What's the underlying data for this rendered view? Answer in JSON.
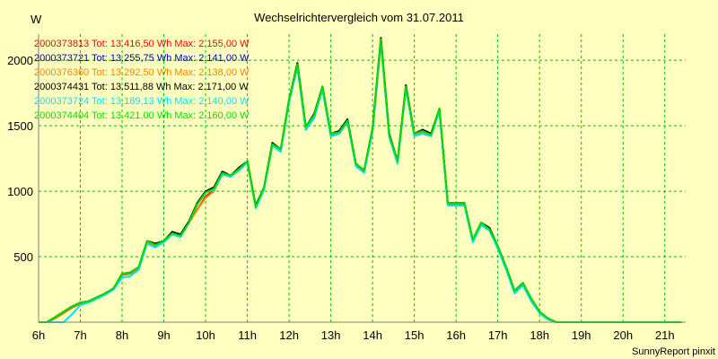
{
  "chart_data": {
    "type": "line",
    "title": "Wechselrichtervergleich vom 31.07.2011",
    "ylabel": "W",
    "xlabel": "",
    "footer": "SunnyReport pinxit",
    "colors": {
      "background": "#ffffc0",
      "grid": "#00c000",
      "axis": "#808080"
    },
    "xlim": [
      6,
      21.5
    ],
    "ylim": [
      0,
      2200
    ],
    "xticks": [
      6,
      7,
      8,
      9,
      10,
      11,
      12,
      13,
      14,
      15,
      16,
      17,
      18,
      19,
      20,
      21
    ],
    "xtick_labels": [
      "6h",
      "7h",
      "8h",
      "9h",
      "10h",
      "11h",
      "12h",
      "13h",
      "14h",
      "15h",
      "16h",
      "17h",
      "18h",
      "19h",
      "20h",
      "21h"
    ],
    "yticks": [
      500,
      1000,
      1500,
      2000
    ],
    "ytick_labels": [
      "500",
      "1000",
      "1500",
      "2000"
    ],
    "x": [
      6.0,
      6.2,
      6.4,
      6.6,
      6.8,
      7.0,
      7.2,
      7.4,
      7.6,
      7.8,
      8.0,
      8.2,
      8.4,
      8.6,
      8.8,
      9.0,
      9.2,
      9.4,
      9.6,
      9.8,
      10.0,
      10.2,
      10.4,
      10.6,
      10.8,
      11.0,
      11.2,
      11.4,
      11.6,
      11.8,
      12.0,
      12.2,
      12.4,
      12.6,
      12.8,
      13.0,
      13.2,
      13.4,
      13.6,
      13.8,
      14.0,
      14.2,
      14.4,
      14.6,
      14.8,
      15.0,
      15.2,
      15.4,
      15.6,
      15.8,
      16.0,
      16.2,
      16.4,
      16.6,
      16.8,
      17.0,
      17.2,
      17.4,
      17.6,
      17.8,
      18.0,
      18.2,
      18.4,
      18.6,
      18.8,
      19.0,
      19.2,
      19.4,
      19.6,
      19.8,
      20.0,
      20.2,
      20.4,
      20.6,
      20.8,
      21.0,
      21.2,
      21.4
    ],
    "series": [
      {
        "id": "2000373813",
        "legend": "2000373813 Tot: 13.416,50 Wh Max: 2.155,00 W",
        "color": "#ff0000",
        "values": [
          0,
          0,
          40,
          80,
          120,
          150,
          160,
          190,
          220,
          260,
          370,
          380,
          420,
          620,
          590,
          620,
          680,
          660,
          760,
          860,
          960,
          1010,
          1130,
          1110,
          1170,
          1220,
          880,
          1030,
          1360,
          1320,
          1700,
          1970,
          1490,
          1580,
          1800,
          1440,
          1450,
          1540,
          1210,
          1160,
          1480,
          2155,
          1430,
          1230,
          1800,
          1440,
          1460,
          1430,
          1630,
          910,
          910,
          910,
          630,
          760,
          710,
          580,
          420,
          240,
          300,
          180,
          80,
          30,
          0,
          0,
          0,
          0,
          0,
          0,
          0,
          0,
          0,
          0,
          0,
          0,
          0,
          0,
          0,
          0
        ]
      },
      {
        "id": "2000373721",
        "legend": "2000373721 Tot: 13.255,75 Wh Max: 2.141,00 W",
        "color": "#0000c0",
        "values": [
          0,
          0,
          30,
          70,
          110,
          140,
          160,
          190,
          220,
          260,
          360,
          370,
          410,
          620,
          580,
          620,
          680,
          660,
          760,
          900,
          990,
          1020,
          1140,
          1120,
          1160,
          1230,
          880,
          1020,
          1360,
          1310,
          1690,
          1950,
          1470,
          1560,
          1780,
          1420,
          1440,
          1530,
          1200,
          1150,
          1460,
          2141,
          1420,
          1220,
          1790,
          1430,
          1450,
          1430,
          1620,
          900,
          900,
          900,
          620,
          750,
          700,
          570,
          410,
          230,
          290,
          170,
          70,
          20,
          0,
          0,
          0,
          0,
          0,
          0,
          0,
          0,
          0,
          0,
          0,
          0,
          0,
          0,
          0,
          0
        ]
      },
      {
        "id": "2000376360",
        "legend": "2000376360 Tot: 13.292,50 Wh Max: 2.138,00 W",
        "color": "#ff8000",
        "values": [
          0,
          0,
          30,
          70,
          110,
          140,
          160,
          190,
          220,
          260,
          360,
          370,
          410,
          610,
          580,
          610,
          670,
          660,
          760,
          860,
          950,
          1000,
          1130,
          1110,
          1160,
          1220,
          880,
          1020,
          1350,
          1310,
          1690,
          1960,
          1480,
          1570,
          1790,
          1430,
          1440,
          1530,
          1200,
          1150,
          1470,
          2138,
          1420,
          1220,
          1790,
          1430,
          1450,
          1420,
          1620,
          900,
          900,
          900,
          620,
          750,
          700,
          570,
          410,
          230,
          290,
          170,
          70,
          20,
          0,
          0,
          0,
          0,
          0,
          0,
          0,
          0,
          0,
          0,
          0,
          0,
          0,
          0,
          0,
          0
        ]
      },
      {
        "id": "2000374431",
        "legend": "2000374431 Tot: 13.511,88 Wh Max: 2.171,00 W",
        "color": "#000000",
        "values": [
          0,
          0,
          40,
          80,
          120,
          150,
          160,
          190,
          220,
          260,
          370,
          380,
          420,
          620,
          600,
          620,
          690,
          670,
          770,
          910,
          1000,
          1030,
          1150,
          1120,
          1180,
          1230,
          890,
          1030,
          1370,
          1320,
          1700,
          1980,
          1490,
          1590,
          1800,
          1440,
          1460,
          1550,
          1210,
          1160,
          1480,
          2171,
          1440,
          1230,
          1810,
          1440,
          1470,
          1440,
          1630,
          910,
          910,
          910,
          630,
          760,
          720,
          580,
          420,
          240,
          300,
          180,
          80,
          30,
          0,
          0,
          0,
          0,
          0,
          0,
          0,
          0,
          0,
          0,
          0,
          0,
          0,
          0,
          0,
          0
        ]
      },
      {
        "id": "2000373724",
        "legend": "2000373724 Tot: 13.189,13 Wh Max: 2.140,00 W",
        "color": "#00e0ff",
        "values": [
          0,
          0,
          0,
          0,
          60,
          130,
          150,
          180,
          210,
          250,
          340,
          350,
          400,
          600,
          570,
          610,
          670,
          650,
          760,
          900,
          990,
          1010,
          1130,
          1110,
          1160,
          1220,
          870,
          1010,
          1350,
          1300,
          1680,
          1950,
          1470,
          1560,
          1780,
          1420,
          1440,
          1530,
          1190,
          1140,
          1460,
          2140,
          1410,
          1210,
          1780,
          1420,
          1440,
          1420,
          1610,
          890,
          890,
          890,
          610,
          740,
          700,
          560,
          400,
          220,
          280,
          160,
          70,
          20,
          0,
          0,
          0,
          0,
          0,
          0,
          0,
          0,
          0,
          0,
          0,
          0,
          0,
          0,
          0,
          0
        ]
      },
      {
        "id": "2000374404",
        "legend": "2000374404 Tot: 13.421,00 Wh Max: 2.160,00 W",
        "color": "#00e000",
        "values": [
          0,
          0,
          40,
          80,
          120,
          150,
          160,
          190,
          220,
          260,
          370,
          380,
          420,
          620,
          590,
          620,
          680,
          660,
          760,
          900,
          990,
          1020,
          1140,
          1120,
          1170,
          1230,
          880,
          1030,
          1360,
          1320,
          1700,
          1970,
          1490,
          1580,
          1800,
          1440,
          1450,
          1540,
          1210,
          1160,
          1480,
          2160,
          1430,
          1230,
          1800,
          1440,
          1460,
          1430,
          1630,
          910,
          910,
          910,
          630,
          760,
          710,
          580,
          420,
          240,
          300,
          180,
          80,
          30,
          0,
          0,
          0,
          0,
          0,
          0,
          0,
          0,
          0,
          0,
          0,
          0,
          0,
          0,
          0,
          0
        ]
      }
    ]
  }
}
